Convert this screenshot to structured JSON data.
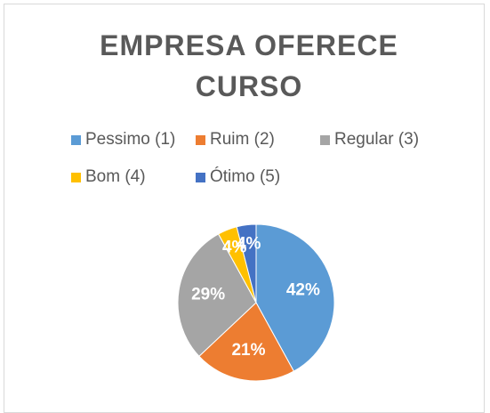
{
  "chart_data": {
    "type": "pie",
    "title": "EMPRESA OFERECE CURSO",
    "categories": [
      "Pessimo (1)",
      "Ruim (2)",
      "Regular (3)",
      "Bom (4)",
      "Ótimo (5)"
    ],
    "values": [
      42,
      21,
      29,
      4,
      4
    ],
    "value_labels": [
      "42%",
      "21%",
      "29%",
      "4%",
      "4%"
    ],
    "colors": [
      "#5b9bd5",
      "#ed7d31",
      "#a5a5a5",
      "#ffc000",
      "#4472c4"
    ],
    "legend": "top"
  }
}
